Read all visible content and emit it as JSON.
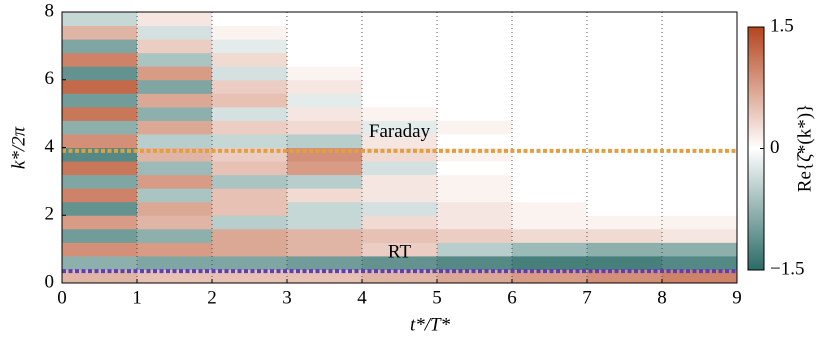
{
  "chart_data": {
    "type": "heatmap",
    "xlabel": "t*/T*",
    "ylabel": "k*/2π",
    "colorbar_label": "Re{ζ̂*(k*)}",
    "x_bins": [
      0,
      1,
      2,
      3,
      4,
      5,
      6,
      7,
      8,
      9
    ],
    "y_bins": [
      0,
      0.4,
      0.8,
      1.2,
      1.6,
      2,
      2.4,
      2.8,
      3.2,
      3.6,
      4,
      4.4,
      4.8,
      5.2,
      5.6,
      6,
      6.4,
      6.8,
      7.2,
      7.6,
      8
    ],
    "z": [
      [
        0.6,
        0.5,
        0.5,
        0.5,
        0.6,
        0.7,
        0.8,
        0.9,
        1.0
      ],
      [
        -0.8,
        -0.9,
        -0.9,
        -1.0,
        -1.1,
        -1.2,
        -1.3,
        -1.3,
        -1.2
      ],
      [
        0.9,
        0.8,
        0.7,
        0.6,
        0.4,
        -0.5,
        -0.7,
        -0.8,
        -0.8
      ],
      [
        -1.0,
        -0.8,
        0.7,
        0.6,
        0.5,
        0.4,
        0.3,
        0.3,
        0.2
      ],
      [
        0.8,
        0.6,
        -0.5,
        -0.4,
        0.3,
        0.2,
        0.1,
        0.1,
        0.1
      ],
      [
        -1.1,
        0.7,
        0.5,
        -0.4,
        -0.3,
        0.2,
        0.1,
        0,
        0
      ],
      [
        1.0,
        -0.6,
        0.5,
        0.3,
        0.2,
        0.1,
        0,
        0,
        0
      ],
      [
        -0.9,
        0.8,
        -0.6,
        -0.5,
        0.2,
        0.1,
        0,
        0,
        0
      ],
      [
        1.1,
        -0.7,
        0.5,
        0.8,
        -0.3,
        0,
        0,
        0,
        0
      ],
      [
        -1.2,
        0.6,
        0.4,
        0.9,
        0.3,
        0.1,
        0,
        0,
        0
      ],
      [
        0.9,
        -0.5,
        -0.4,
        -0.5,
        0.2,
        0,
        0,
        0,
        0
      ],
      [
        -0.8,
        0.7,
        0.4,
        0.3,
        -0.2,
        0.1,
        0,
        0,
        0
      ],
      [
        1.1,
        -0.8,
        -0.3,
        0.2,
        0.1,
        0,
        0,
        0,
        0
      ],
      [
        -1.0,
        0.7,
        0.5,
        -0.2,
        0,
        0,
        0,
        0,
        0
      ],
      [
        1.2,
        -0.9,
        0.4,
        0.2,
        0,
        0,
        0,
        0,
        0
      ],
      [
        -1.1,
        0.8,
        -0.3,
        0.1,
        0,
        0,
        0,
        0,
        0
      ],
      [
        1.0,
        -0.6,
        0.3,
        0,
        0,
        0,
        0,
        0,
        0
      ],
      [
        -0.9,
        0.4,
        -0.2,
        0,
        0,
        0,
        0,
        0,
        0
      ],
      [
        0.6,
        -0.3,
        0.1,
        0,
        0,
        0,
        0,
        0,
        0
      ],
      [
        -0.4,
        0.2,
        0,
        0,
        0,
        0,
        0,
        0,
        0
      ]
    ],
    "colormap": [
      "#2b6b66",
      "#ffffff",
      "#b5451d"
    ],
    "xlim": [
      0,
      9
    ],
    "ylim": [
      0,
      8
    ],
    "zlim": [
      -1.5,
      1.5
    ],
    "xticks": [
      0,
      1,
      2,
      3,
      4,
      5,
      6,
      7,
      8,
      9
    ],
    "yticks": [
      0,
      2,
      4,
      6,
      8
    ],
    "zticks": [
      {
        "value": -1.5,
        "label": "−1.5"
      },
      0,
      1.5
    ],
    "grid": "x",
    "hlines": [
      {
        "name": "Faraday",
        "value": 3.9,
        "color": "#e0a040"
      },
      {
        "name": "RT",
        "value": 0.35,
        "color": "#5a3fb8"
      }
    ]
  }
}
